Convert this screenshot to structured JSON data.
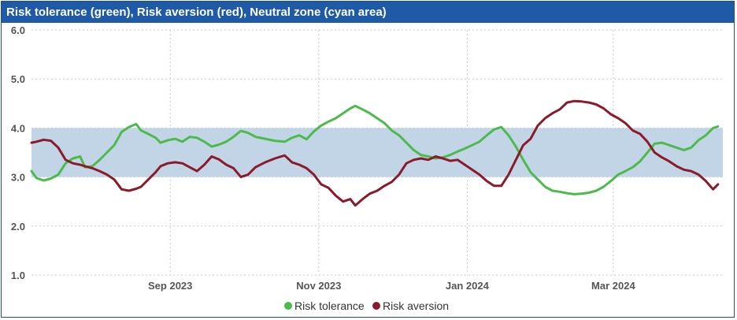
{
  "title": "Risk tolerance (green), Risk aversion (red), Neutral zone (cyan area)",
  "colors": {
    "risk_tolerance": "#4cbb4c",
    "risk_aversion": "#8b1a2b",
    "neutral_zone": "#c2d5e6",
    "title_bar": "#1f5aa6"
  },
  "chart_data": {
    "type": "line",
    "title": "Risk tolerance (green), Risk aversion (red), Neutral zone (cyan area)",
    "xlabel": "",
    "ylabel": "",
    "ylim": [
      1.0,
      6.0
    ],
    "yticks": [
      "1.0",
      "2.0",
      "3.0",
      "4.0",
      "5.0",
      "6.0"
    ],
    "xlim": [
      "2023-07-06",
      "2024-04-15"
    ],
    "xticks": [
      {
        "date": "2023-09-01",
        "label": "Sep 2023"
      },
      {
        "date": "2023-11-01",
        "label": "Nov 2023"
      },
      {
        "date": "2024-01-01",
        "label": "Jan 2024"
      },
      {
        "date": "2024-03-01",
        "label": "Mar 2024"
      }
    ],
    "neutral_zone": [
      3.0,
      4.0
    ],
    "grid": "dotted",
    "legend": "bottom",
    "series": [
      {
        "name": "Risk tolerance",
        "points": [
          [
            "2023-07-06",
            3.12
          ],
          [
            "2023-07-08",
            2.98
          ],
          [
            "2023-07-11",
            2.93
          ],
          [
            "2023-07-14",
            2.97
          ],
          [
            "2023-07-17",
            3.05
          ],
          [
            "2023-07-20",
            3.28
          ],
          [
            "2023-07-23",
            3.38
          ],
          [
            "2023-07-26",
            3.42
          ],
          [
            "2023-07-28",
            3.2
          ],
          [
            "2023-07-31",
            3.22
          ],
          [
            "2023-08-03",
            3.35
          ],
          [
            "2023-08-06",
            3.5
          ],
          [
            "2023-08-09",
            3.65
          ],
          [
            "2023-08-12",
            3.92
          ],
          [
            "2023-08-15",
            4.02
          ],
          [
            "2023-08-18",
            4.08
          ],
          [
            "2023-08-20",
            3.95
          ],
          [
            "2023-08-23",
            3.88
          ],
          [
            "2023-08-26",
            3.8
          ],
          [
            "2023-08-28",
            3.7
          ],
          [
            "2023-08-31",
            3.75
          ],
          [
            "2023-09-03",
            3.78
          ],
          [
            "2023-09-06",
            3.72
          ],
          [
            "2023-09-09",
            3.82
          ],
          [
            "2023-09-12",
            3.8
          ],
          [
            "2023-09-15",
            3.72
          ],
          [
            "2023-09-18",
            3.62
          ],
          [
            "2023-09-21",
            3.66
          ],
          [
            "2023-09-24",
            3.72
          ],
          [
            "2023-09-27",
            3.82
          ],
          [
            "2023-09-30",
            3.94
          ],
          [
            "2023-10-03",
            3.9
          ],
          [
            "2023-10-06",
            3.82
          ],
          [
            "2023-10-10",
            3.78
          ],
          [
            "2023-10-14",
            3.74
          ],
          [
            "2023-10-18",
            3.72
          ],
          [
            "2023-10-21",
            3.8
          ],
          [
            "2023-10-24",
            3.85
          ],
          [
            "2023-10-27",
            3.77
          ],
          [
            "2023-10-30",
            3.93
          ],
          [
            "2023-11-02",
            4.05
          ],
          [
            "2023-11-05",
            4.13
          ],
          [
            "2023-11-08",
            4.2
          ],
          [
            "2023-11-11",
            4.3
          ],
          [
            "2023-11-14",
            4.4
          ],
          [
            "2023-11-16",
            4.45
          ],
          [
            "2023-11-19",
            4.38
          ],
          [
            "2023-11-22",
            4.3
          ],
          [
            "2023-11-25",
            4.2
          ],
          [
            "2023-11-28",
            4.1
          ],
          [
            "2023-12-01",
            3.95
          ],
          [
            "2023-12-04",
            3.85
          ],
          [
            "2023-12-07",
            3.7
          ],
          [
            "2023-12-10",
            3.55
          ],
          [
            "2023-12-13",
            3.45
          ],
          [
            "2023-12-16",
            3.42
          ],
          [
            "2023-12-19",
            3.38
          ],
          [
            "2023-12-22",
            3.4
          ],
          [
            "2023-12-25",
            3.45
          ],
          [
            "2023-12-28",
            3.52
          ],
          [
            "2023-12-31",
            3.58
          ],
          [
            "2024-01-03",
            3.65
          ],
          [
            "2024-01-06",
            3.72
          ],
          [
            "2024-01-09",
            3.85
          ],
          [
            "2024-01-12",
            3.97
          ],
          [
            "2024-01-15",
            4.02
          ],
          [
            "2024-01-18",
            3.85
          ],
          [
            "2024-01-21",
            3.62
          ],
          [
            "2024-01-24",
            3.35
          ],
          [
            "2024-01-27",
            3.1
          ],
          [
            "2024-01-30",
            2.95
          ],
          [
            "2024-02-02",
            2.8
          ],
          [
            "2024-02-05",
            2.72
          ],
          [
            "2024-02-08",
            2.7
          ],
          [
            "2024-02-11",
            2.67
          ],
          [
            "2024-02-14",
            2.65
          ],
          [
            "2024-02-17",
            2.66
          ],
          [
            "2024-02-20",
            2.68
          ],
          [
            "2024-02-23",
            2.72
          ],
          [
            "2024-02-26",
            2.8
          ],
          [
            "2024-02-29",
            2.92
          ],
          [
            "2024-03-03",
            3.05
          ],
          [
            "2024-03-06",
            3.12
          ],
          [
            "2024-03-09",
            3.2
          ],
          [
            "2024-03-12",
            3.32
          ],
          [
            "2024-03-15",
            3.5
          ],
          [
            "2024-03-18",
            3.68
          ],
          [
            "2024-03-21",
            3.7
          ],
          [
            "2024-03-24",
            3.65
          ],
          [
            "2024-03-27",
            3.6
          ],
          [
            "2024-03-30",
            3.55
          ],
          [
            "2024-04-02",
            3.6
          ],
          [
            "2024-04-05",
            3.75
          ],
          [
            "2024-04-08",
            3.85
          ],
          [
            "2024-04-11",
            4.0
          ],
          [
            "2024-04-13",
            4.03
          ]
        ]
      },
      {
        "name": "Risk aversion",
        "points": [
          [
            "2023-07-06",
            3.7
          ],
          [
            "2023-07-08",
            3.72
          ],
          [
            "2023-07-11",
            3.76
          ],
          [
            "2023-07-14",
            3.74
          ],
          [
            "2023-07-17",
            3.6
          ],
          [
            "2023-07-20",
            3.35
          ],
          [
            "2023-07-23",
            3.28
          ],
          [
            "2023-07-26",
            3.25
          ],
          [
            "2023-07-28",
            3.22
          ],
          [
            "2023-07-31",
            3.18
          ],
          [
            "2023-08-03",
            3.12
          ],
          [
            "2023-08-06",
            3.05
          ],
          [
            "2023-08-09",
            2.95
          ],
          [
            "2023-08-12",
            2.75
          ],
          [
            "2023-08-15",
            2.72
          ],
          [
            "2023-08-18",
            2.76
          ],
          [
            "2023-08-20",
            2.8
          ],
          [
            "2023-08-23",
            2.95
          ],
          [
            "2023-08-26",
            3.1
          ],
          [
            "2023-08-28",
            3.22
          ],
          [
            "2023-08-31",
            3.28
          ],
          [
            "2023-09-03",
            3.3
          ],
          [
            "2023-09-06",
            3.28
          ],
          [
            "2023-09-09",
            3.2
          ],
          [
            "2023-09-12",
            3.12
          ],
          [
            "2023-09-15",
            3.25
          ],
          [
            "2023-09-18",
            3.42
          ],
          [
            "2023-09-21",
            3.36
          ],
          [
            "2023-09-24",
            3.25
          ],
          [
            "2023-09-27",
            3.18
          ],
          [
            "2023-09-30",
            3.0
          ],
          [
            "2023-10-03",
            3.05
          ],
          [
            "2023-10-06",
            3.2
          ],
          [
            "2023-10-10",
            3.3
          ],
          [
            "2023-10-14",
            3.38
          ],
          [
            "2023-10-18",
            3.44
          ],
          [
            "2023-10-21",
            3.3
          ],
          [
            "2023-10-24",
            3.25
          ],
          [
            "2023-10-27",
            3.18
          ],
          [
            "2023-10-30",
            3.05
          ],
          [
            "2023-11-02",
            2.85
          ],
          [
            "2023-11-05",
            2.78
          ],
          [
            "2023-11-08",
            2.62
          ],
          [
            "2023-11-11",
            2.5
          ],
          [
            "2023-11-14",
            2.55
          ],
          [
            "2023-11-16",
            2.42
          ],
          [
            "2023-11-19",
            2.55
          ],
          [
            "2023-11-22",
            2.66
          ],
          [
            "2023-11-25",
            2.72
          ],
          [
            "2023-11-28",
            2.82
          ],
          [
            "2023-12-01",
            2.9
          ],
          [
            "2023-12-04",
            3.05
          ],
          [
            "2023-12-07",
            3.28
          ],
          [
            "2023-12-10",
            3.35
          ],
          [
            "2023-12-13",
            3.38
          ],
          [
            "2023-12-16",
            3.35
          ],
          [
            "2023-12-19",
            3.42
          ],
          [
            "2023-12-22",
            3.38
          ],
          [
            "2023-12-25",
            3.33
          ],
          [
            "2023-12-28",
            3.35
          ],
          [
            "2023-12-31",
            3.25
          ],
          [
            "2024-01-03",
            3.15
          ],
          [
            "2024-01-06",
            3.05
          ],
          [
            "2024-01-09",
            2.92
          ],
          [
            "2024-01-12",
            2.82
          ],
          [
            "2024-01-15",
            2.82
          ],
          [
            "2024-01-18",
            3.05
          ],
          [
            "2024-01-21",
            3.35
          ],
          [
            "2024-01-24",
            3.65
          ],
          [
            "2024-01-27",
            3.78
          ],
          [
            "2024-01-30",
            4.05
          ],
          [
            "2024-02-02",
            4.2
          ],
          [
            "2024-02-05",
            4.3
          ],
          [
            "2024-02-08",
            4.38
          ],
          [
            "2024-02-11",
            4.52
          ],
          [
            "2024-02-14",
            4.55
          ],
          [
            "2024-02-17",
            4.54
          ],
          [
            "2024-02-20",
            4.52
          ],
          [
            "2024-02-23",
            4.48
          ],
          [
            "2024-02-26",
            4.4
          ],
          [
            "2024-02-29",
            4.28
          ],
          [
            "2024-03-03",
            4.2
          ],
          [
            "2024-03-06",
            4.1
          ],
          [
            "2024-03-09",
            3.95
          ],
          [
            "2024-03-12",
            3.88
          ],
          [
            "2024-03-15",
            3.72
          ],
          [
            "2024-03-18",
            3.5
          ],
          [
            "2024-03-21",
            3.4
          ],
          [
            "2024-03-24",
            3.32
          ],
          [
            "2024-03-27",
            3.22
          ],
          [
            "2024-03-30",
            3.15
          ],
          [
            "2024-04-02",
            3.12
          ],
          [
            "2024-04-05",
            3.05
          ],
          [
            "2024-04-08",
            2.92
          ],
          [
            "2024-04-11",
            2.75
          ],
          [
            "2024-04-13",
            2.85
          ]
        ]
      }
    ]
  }
}
